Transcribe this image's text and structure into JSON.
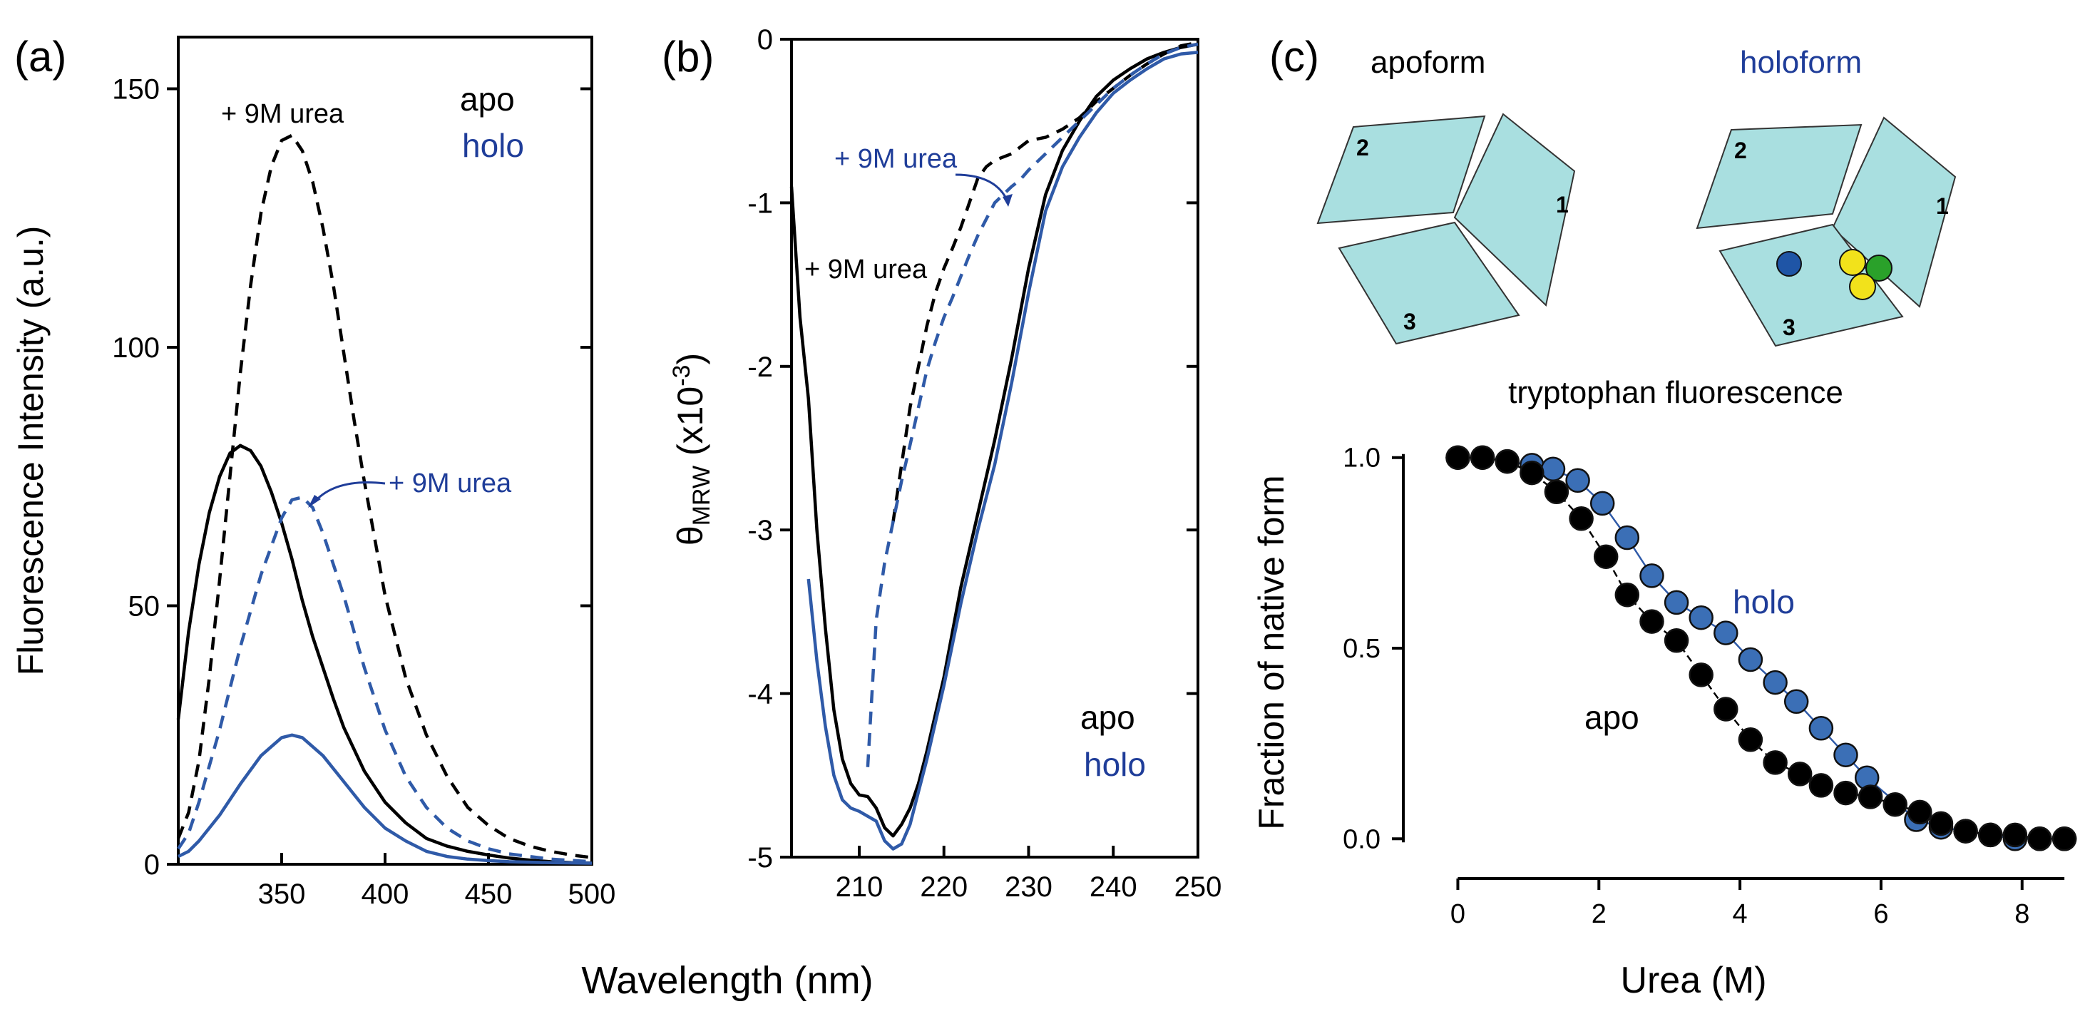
{
  "colors": {
    "apo": "#000000",
    "holo": "#2f5aa8",
    "holo_text": "#1f3d99",
    "holo_marker": "#3b6fb6",
    "domain_fill": "#a9dfe0",
    "ligand_yellow": "#f2e21b",
    "ligand_green": "#2aa12a",
    "ligand_blue": "#1f55a6"
  },
  "shared_xlabel": "Wavelength (nm)",
  "chart_data": [
    {
      "id": "a",
      "panel_label": "(a)",
      "type": "line",
      "xlabel": "Wavelength (nm)",
      "ylabel": "Fluorescence Intensity (a.u.)",
      "xlim": [
        300,
        500
      ],
      "ylim": [
        0,
        160
      ],
      "xticks": [
        350,
        400,
        450,
        500
      ],
      "yticks": [
        0,
        50,
        100,
        150
      ],
      "legend": [
        "apo",
        "holo"
      ],
      "annotations": [
        "+ 9M urea",
        "+ 9M urea"
      ],
      "series": [
        {
          "name": "apo",
          "style": "solid",
          "x": [
            300,
            305,
            310,
            315,
            320,
            325,
            330,
            335,
            340,
            345,
            350,
            355,
            360,
            365,
            370,
            375,
            380,
            390,
            400,
            410,
            420,
            430,
            440,
            450,
            460,
            470,
            480,
            490,
            500
          ],
          "y": [
            28,
            45,
            58,
            68,
            75,
            79.5,
            81,
            80,
            77,
            72,
            66,
            59,
            51,
            44,
            38,
            32,
            26.5,
            18,
            12,
            8,
            5,
            3.5,
            2.5,
            1.8,
            1.2,
            0.8,
            0.5,
            0.3,
            0.2
          ]
        },
        {
          "name": "apo + 9M urea",
          "style": "dashed",
          "x": [
            300,
            305,
            310,
            315,
            320,
            325,
            330,
            335,
            340,
            345,
            350,
            355,
            360,
            365,
            370,
            375,
            380,
            385,
            390,
            400,
            410,
            420,
            430,
            440,
            450,
            460,
            470,
            480,
            490,
            500
          ],
          "y": [
            5,
            10,
            20,
            36,
            55,
            75,
            95,
            112,
            126,
            135,
            140,
            141,
            138,
            132,
            123,
            112,
            99,
            86,
            74,
            52,
            36,
            25,
            17,
            11,
            7.5,
            5,
            3.5,
            2.5,
            1.8,
            1.3
          ]
        },
        {
          "name": "holo",
          "style": "solid",
          "x": [
            300,
            305,
            310,
            320,
            330,
            340,
            350,
            355,
            360,
            370,
            380,
            390,
            400,
            410,
            420,
            430,
            440,
            450,
            460,
            480,
            500
          ],
          "y": [
            1.5,
            2.5,
            4.5,
            9.5,
            15.5,
            21,
            24.5,
            25,
            24.5,
            21,
            16,
            11,
            7,
            4.5,
            2.5,
            1.5,
            1,
            0.7,
            0.5,
            0.3,
            0.2
          ]
        },
        {
          "name": "holo + 9M urea",
          "style": "dashed",
          "x": [
            300,
            305,
            310,
            320,
            330,
            340,
            350,
            355,
            360,
            365,
            370,
            380,
            390,
            400,
            410,
            420,
            430,
            440,
            450,
            460,
            480,
            500
          ],
          "y": [
            3,
            6,
            12,
            26,
            42,
            56,
            67,
            70.5,
            71,
            69,
            64,
            52,
            38,
            26,
            17,
            11,
            7,
            4.5,
            3,
            2,
            1,
            0.5
          ]
        }
      ]
    },
    {
      "id": "b",
      "panel_label": "(b)",
      "type": "line",
      "xlabel": "",
      "ylabel_main": "θ",
      "ylabel_sub": "MRW",
      "ylabel_rest": " (x10",
      "ylabel_sup": "-3",
      "ylabel_end": ")",
      "xlim": [
        202,
        250
      ],
      "ylim": [
        -5,
        0
      ],
      "xticks": [
        210,
        220,
        230,
        240,
        250
      ],
      "yticks": [
        0,
        -1,
        -2,
        -3,
        -4,
        -5
      ],
      "legend": [
        "apo",
        "holo"
      ],
      "annotations": [
        "+ 9M urea",
        "+ 9M urea"
      ],
      "series": [
        {
          "name": "apo",
          "style": "solid",
          "x": [
            202,
            203,
            204,
            205,
            206,
            207,
            208,
            209,
            210,
            211,
            212,
            213,
            214,
            215,
            216,
            217,
            218,
            220,
            222,
            224,
            226,
            228,
            230,
            232,
            234,
            236,
            238,
            240,
            242,
            244,
            246,
            248,
            250
          ],
          "y": [
            -0.9,
            -1.7,
            -2.2,
            -3.0,
            -3.6,
            -4.1,
            -4.4,
            -4.55,
            -4.62,
            -4.63,
            -4.7,
            -4.82,
            -4.87,
            -4.8,
            -4.7,
            -4.55,
            -4.35,
            -3.9,
            -3.35,
            -2.9,
            -2.45,
            -1.95,
            -1.4,
            -0.95,
            -0.68,
            -0.5,
            -0.35,
            -0.25,
            -0.18,
            -0.12,
            -0.08,
            -0.05,
            -0.03
          ]
        },
        {
          "name": "apo + 9M urea",
          "style": "dashed",
          "x": [
            214,
            215,
            216,
            217,
            218,
            219,
            220,
            221,
            222,
            223,
            224,
            225,
            226,
            227,
            228,
            229,
            230,
            232,
            234,
            236,
            238,
            240,
            242,
            244,
            246,
            248,
            250
          ],
          "y": [
            -2.95,
            -2.6,
            -2.25,
            -2.0,
            -1.75,
            -1.55,
            -1.4,
            -1.28,
            -1.15,
            -1.0,
            -0.85,
            -0.78,
            -0.74,
            -0.72,
            -0.7,
            -0.66,
            -0.62,
            -0.6,
            -0.55,
            -0.48,
            -0.38,
            -0.3,
            -0.22,
            -0.15,
            -0.09,
            -0.04,
            -0.02
          ]
        },
        {
          "name": "holo",
          "style": "solid",
          "x": [
            204,
            205,
            206,
            207,
            208,
            209,
            210,
            211,
            212,
            213,
            214,
            215,
            216,
            217,
            218,
            220,
            222,
            224,
            226,
            228,
            230,
            232,
            234,
            236,
            238,
            240,
            242,
            244,
            246,
            248,
            250
          ],
          "y": [
            -3.3,
            -3.8,
            -4.2,
            -4.5,
            -4.65,
            -4.7,
            -4.72,
            -4.75,
            -4.78,
            -4.9,
            -4.95,
            -4.92,
            -4.8,
            -4.6,
            -4.4,
            -3.95,
            -3.45,
            -3.0,
            -2.6,
            -2.1,
            -1.55,
            -1.05,
            -0.78,
            -0.6,
            -0.45,
            -0.33,
            -0.25,
            -0.18,
            -0.12,
            -0.09,
            -0.08
          ]
        },
        {
          "name": "holo + 9M urea",
          "style": "dashed",
          "x": [
            211,
            212,
            213,
            214,
            215,
            216,
            217,
            218,
            219,
            220,
            221,
            222,
            223,
            224,
            225,
            226,
            227,
            228,
            229,
            230,
            232,
            234,
            236,
            238,
            240,
            242,
            244,
            246,
            248,
            250
          ],
          "y": [
            -4.45,
            -3.55,
            -3.2,
            -2.95,
            -2.7,
            -2.48,
            -2.25,
            -2.02,
            -1.85,
            -1.7,
            -1.58,
            -1.45,
            -1.32,
            -1.2,
            -1.1,
            -1.0,
            -0.95,
            -0.9,
            -0.86,
            -0.8,
            -0.7,
            -0.6,
            -0.5,
            -0.4,
            -0.3,
            -0.22,
            -0.15,
            -0.09,
            -0.05,
            -0.03
          ]
        }
      ]
    },
    {
      "id": "c",
      "panel_label": "(c)",
      "type": "scatter",
      "title": "tryptophan fluorescence",
      "xlabel": "Urea (M)",
      "ylabel": "Fraction of native form",
      "xlim": [
        -0.5,
        8.7
      ],
      "ylim": [
        -0.05,
        1.05
      ],
      "xticks": [
        0,
        2,
        4,
        6,
        8
      ],
      "yticks": [
        0.0,
        0.5,
        1.0
      ],
      "ytick_labels": [
        "0.0",
        "0.5",
        "1.0"
      ],
      "annotations": [
        "holo",
        "apo"
      ],
      "series": [
        {
          "name": "holo",
          "x": [
            0,
            0.35,
            0.7,
            1.05,
            1.35,
            1.7,
            2.05,
            2.4,
            2.75,
            3.1,
            3.45,
            3.8,
            4.15,
            4.5,
            4.8,
            5.15,
            5.5,
            5.8,
            6.5,
            6.85,
            7.2,
            7.55,
            7.9,
            8.25,
            8.6
          ],
          "y": [
            1.0,
            1.0,
            0.99,
            0.98,
            0.97,
            0.94,
            0.88,
            0.79,
            0.69,
            0.62,
            0.58,
            0.54,
            0.47,
            0.41,
            0.36,
            0.29,
            0.22,
            0.16,
            0.05,
            0.03,
            0.02,
            0.01,
            0.0,
            0.0,
            0.0
          ]
        },
        {
          "name": "apo",
          "x": [
            0,
            0.35,
            0.7,
            1.05,
            1.4,
            1.75,
            2.1,
            2.4,
            2.75,
            3.1,
            3.45,
            3.8,
            4.15,
            4.5,
            4.85,
            5.15,
            5.5,
            5.85,
            6.2,
            6.55,
            6.85,
            7.2,
            7.55,
            7.9,
            8.25,
            8.6
          ],
          "y": [
            1.0,
            1.0,
            0.99,
            0.96,
            0.91,
            0.84,
            0.74,
            0.64,
            0.57,
            0.52,
            0.43,
            0.34,
            0.26,
            0.2,
            0.17,
            0.14,
            0.12,
            0.11,
            0.09,
            0.07,
            0.04,
            0.02,
            0.01,
            0.01,
            0.0,
            0.0
          ]
        }
      ]
    }
  ],
  "schematic": {
    "apoform_label": "apoform",
    "holoform_label": "holoform",
    "apo_domains": [
      "1",
      "2",
      "3"
    ],
    "holo_domains": [
      "1",
      "2",
      "3"
    ]
  }
}
